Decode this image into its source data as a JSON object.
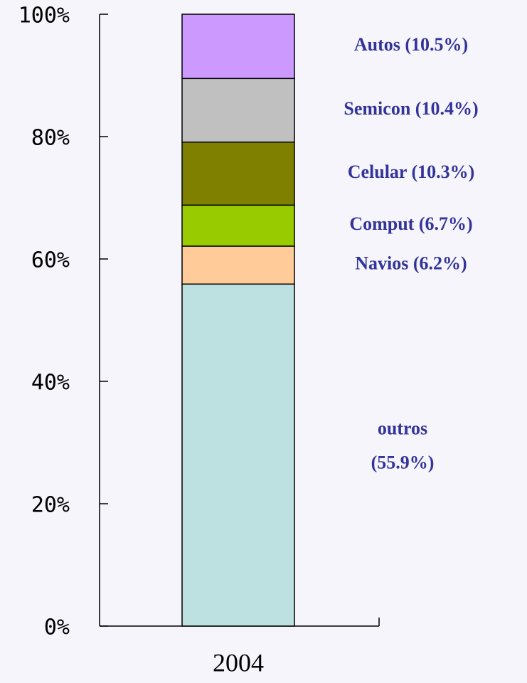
{
  "chart_data": {
    "type": "stacked_bar",
    "categories": [
      "2004"
    ],
    "series": [
      {
        "name": "outros",
        "color": "#bde0e0",
        "values": [
          55.9
        ],
        "value_labels": [
          "(55.9%)"
        ]
      },
      {
        "name": "Navios",
        "color": "#ffcc99",
        "values": [
          6.2
        ],
        "value_labels": [
          "(6.2%)"
        ]
      },
      {
        "name": "Comput",
        "color": "#99cc00",
        "values": [
          6.7
        ],
        "value_labels": [
          "(6.7%)"
        ]
      },
      {
        "name": "Celular",
        "color": "#808000",
        "values": [
          10.3
        ],
        "value_labels": [
          "(10.3%)"
        ]
      },
      {
        "name": "Semicon",
        "color": "#c0c0c0",
        "values": [
          10.4
        ],
        "value_labels": [
          "(10.4%)"
        ]
      },
      {
        "name": "Autos",
        "color": "#cc99ff",
        "values": [
          10.5
        ],
        "value_labels": [
          "(10.5%)"
        ]
      }
    ],
    "ylim": [
      0,
      100
    ],
    "yticks": [
      {
        "value": 0,
        "label": "0%"
      },
      {
        "value": 20,
        "label": "20%"
      },
      {
        "value": 40,
        "label": "40%"
      },
      {
        "value": 60,
        "label": "60%"
      },
      {
        "value": 80,
        "label": "80%"
      },
      {
        "value": 100,
        "label": "100%"
      }
    ]
  }
}
